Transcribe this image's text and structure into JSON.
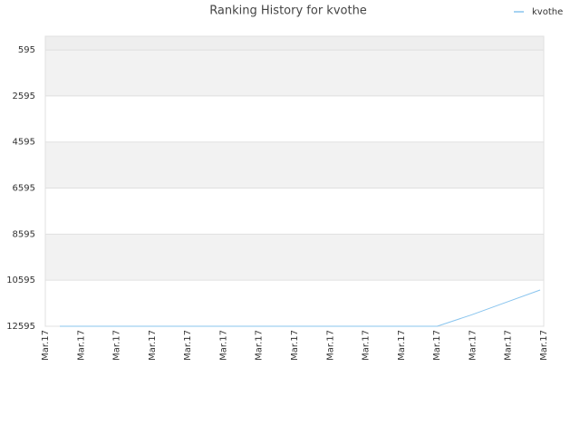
{
  "chart_data": {
    "type": "line",
    "title": "Ranking History for kvothe",
    "categories": [
      "Mar.17",
      "Mar.17",
      "Mar.17",
      "Mar.17",
      "Mar.17",
      "Mar.17",
      "Mar.17",
      "Mar.17",
      "Mar.17",
      "Mar.17",
      "Mar.17",
      "Mar.17",
      "Mar.17",
      "Mar.17",
      "Mar.17"
    ],
    "series": [
      {
        "name": "kvothe",
        "color": "#88c4ee",
        "values": [
          12595,
          12595,
          12595,
          12595,
          12595,
          12595,
          12595,
          12595,
          12595,
          12595,
          12595,
          12595,
          12100,
          11560,
          11020
        ]
      }
    ],
    "ylim": [
      12595,
      0
    ],
    "yticks": [
      595,
      2595,
      4595,
      6595,
      8595,
      10595,
      12595
    ],
    "grid": true,
    "legend": "top-right"
  }
}
